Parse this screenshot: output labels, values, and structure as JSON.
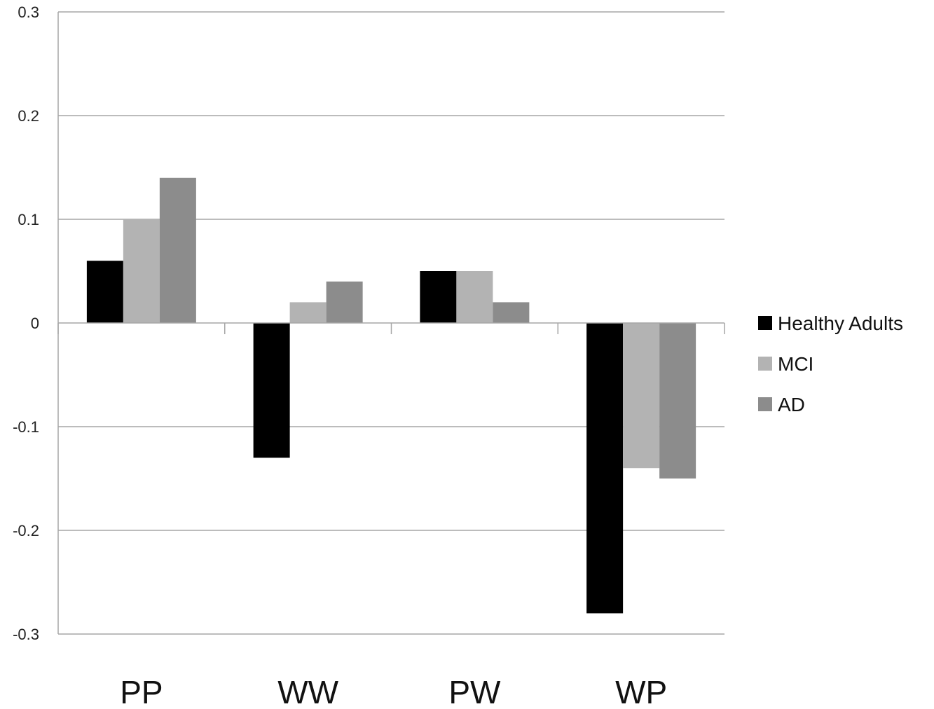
{
  "chart_data": {
    "type": "bar",
    "categories": [
      "PP",
      "WW",
      "PW",
      "WP"
    ],
    "series": [
      {
        "name": "Healthy Adults",
        "color": "#000000",
        "values": [
          0.06,
          -0.13,
          0.05,
          -0.28
        ]
      },
      {
        "name": "MCI",
        "color": "#b3b3b3",
        "values": [
          0.1,
          0.02,
          0.05,
          -0.14
        ]
      },
      {
        "name": "AD",
        "color": "#8c8c8c",
        "values": [
          0.14,
          0.04,
          0.02,
          -0.15
        ]
      }
    ],
    "yticks": [
      "0.3",
      "0.2",
      "0.1",
      "0",
      "-0.1",
      "-0.2",
      "-0.3"
    ],
    "ylim": [
      -0.3,
      0.3
    ],
    "grid": true,
    "legend_position": "right"
  }
}
